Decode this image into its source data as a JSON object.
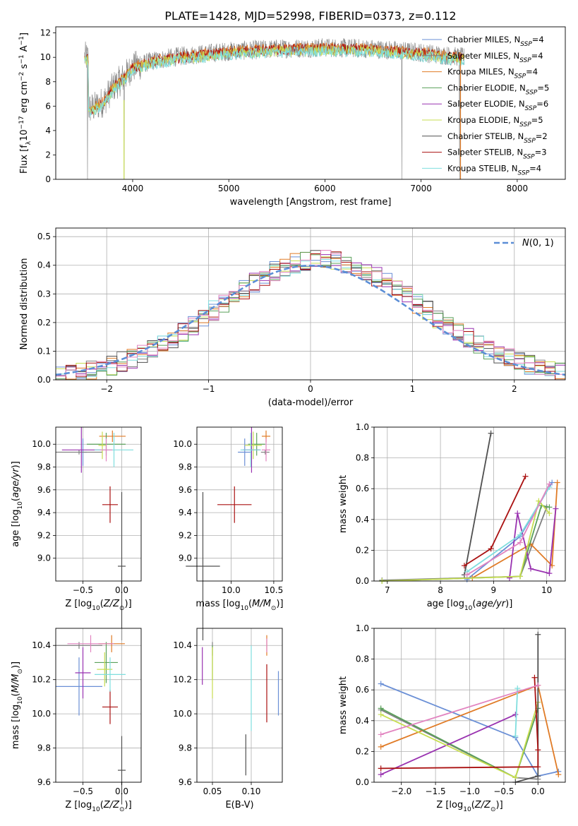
{
  "title": "PLATE=1428, MJD=52998, FIBERID=0373, z=0.112",
  "colors": {
    "Chabrier MILES": "#6a8fd6",
    "Salpeter MILES": "#808080",
    "Kroupa MILES": "#e07b26",
    "Chabrier ELODIE": "#5aa05a",
    "Salpeter ELODIE": "#9932b0",
    "Kroupa ELODIE": "#c7dd50",
    "Chabrier STELIB": "#505050",
    "Salpeter STELIB": "#aa1111",
    "Kroupa STELIB": "#7fdede",
    "pink": "#e284c0",
    "normal": "#5b8ed6"
  },
  "chart_data": [
    {
      "id": "spectrum",
      "type": "line",
      "xlabel": "wavelength [Angstrom, rest frame]",
      "ylabel": "Flux [f_λ10^-17 erg cm^-2 s^-1 A^-1]",
      "xlim": [
        3200,
        8500
      ],
      "ylim": [
        0,
        12.5
      ],
      "xticks": [
        4000,
        5000,
        6000,
        7000,
        8000
      ],
      "yticks": [
        0,
        2,
        4,
        6,
        8,
        10,
        12
      ],
      "grid": false,
      "legend_position": "right",
      "legend": [
        "Chabrier MILES, N_SSP=4",
        "Salpeter MILES, N_SSP=4",
        "Kroupa MILES, N_SSP=4",
        "Chabrier ELODIE, N_SSP=5",
        "Salpeter ELODIE, N_SSP=6",
        "Kroupa ELODIE, N_SSP=5",
        "Chabrier STELIB, N_SSP=2",
        "Salpeter STELIB, N_SSP=3",
        "Kroupa STELIB, N_SSP=4"
      ],
      "continuum": {
        "x": [
          3540,
          3600,
          3700,
          3800,
          3900,
          4000,
          4200,
          4500,
          5000,
          5500,
          6000,
          6500,
          7000,
          7200,
          7450
        ],
        "y": [
          5.8,
          5.9,
          6.4,
          7.6,
          8.3,
          9.2,
          9.7,
          10.1,
          10.5,
          10.7,
          10.8,
          10.7,
          10.4,
          10.2,
          10.0
        ]
      },
      "data_x_range": [
        3500,
        7450
      ],
      "spikes_to_zero": [
        3530,
        3910,
        6800,
        7400
      ]
    },
    {
      "id": "residuals",
      "type": "histogram",
      "xlabel": "(data-model)/error",
      "ylabel": "Normed distribution",
      "xlim": [
        -2.5,
        2.5
      ],
      "ylim": [
        0,
        0.53
      ],
      "xticks": [
        -2,
        -1,
        0,
        1,
        2
      ],
      "yticks": [
        0.0,
        0.1,
        0.2,
        0.3,
        0.4,
        0.5
      ],
      "grid": true,
      "legend": [
        "N(0,1)"
      ],
      "legend_position": "top-right",
      "bins": 50,
      "reference": "gaussian mean 0, sigma 1"
    },
    {
      "id": "age_vs_Z",
      "type": "scatter",
      "xlabel": "Z [log10(Z/Z⊙)]",
      "ylabel": "age  [log10(age/yr)]",
      "xlim": [
        -0.85,
        0.25
      ],
      "ylim": [
        8.8,
        10.15
      ],
      "xticks": [
        -0.5,
        0.0
      ],
      "yticks": [
        9.0,
        9.2,
        9.4,
        9.6,
        9.8,
        10.0
      ],
      "grid": true,
      "points": [
        {
          "series": "Chabrier MILES",
          "x": -0.5,
          "xerr": 0.05,
          "y": 9.93,
          "yerr": 0.12
        },
        {
          "series": "Salpeter MILES",
          "x": -0.55,
          "xerr": 0.3,
          "y": 9.93,
          "yerr": 0.02
        },
        {
          "series": "Kroupa MILES",
          "x": -0.12,
          "xerr": 0.17,
          "y": 10.07,
          "yerr": 0.05
        },
        {
          "series": "Chabrier ELODIE",
          "x": -0.2,
          "xerr": 0.25,
          "y": 10.0,
          "yerr": 0.1
        },
        {
          "series": "Salpeter ELODIE",
          "x": -0.52,
          "xerr": 0.25,
          "y": 9.95,
          "yerr": 0.2
        },
        {
          "series": "Kroupa ELODIE",
          "x": -0.25,
          "xerr": 0.05,
          "y": 9.99,
          "yerr": 0.12
        },
        {
          "series": "Chabrier STELIB",
          "x": 0.0,
          "xerr": 0.05,
          "y": 8.93,
          "yerr": 0.65
        },
        {
          "series": "Salpeter STELIB",
          "x": -0.15,
          "xerr": 0.1,
          "y": 9.47,
          "yerr": 0.16
        },
        {
          "series": "Kroupa STELIB",
          "x": -0.1,
          "xerr": 0.25,
          "y": 9.95,
          "yerr": 0.15
        },
        {
          "series": "pink",
          "x": -0.2,
          "xerr": 0.08,
          "y": 9.95,
          "yerr": 0.1
        }
      ]
    },
    {
      "id": "age_vs_mass",
      "type": "scatter",
      "xlabel": "mass [log10(M/M⊙)]",
      "ylabel": "",
      "xlim": [
        9.6,
        10.6
      ],
      "ylim": [
        8.8,
        10.15
      ],
      "xticks": [
        10.0,
        10.5
      ],
      "yticks": [
        9.0,
        9.2,
        9.4,
        9.6,
        9.8,
        10.0
      ],
      "grid": true,
      "points": [
        {
          "series": "Chabrier MILES",
          "x": 10.16,
          "xerr": 0.08,
          "y": 9.93,
          "yerr": 0.12
        },
        {
          "series": "Salpeter MILES",
          "x": 10.4,
          "xerr": 0.05,
          "y": 9.93,
          "yerr": 0.02
        },
        {
          "series": "Kroupa MILES",
          "x": 10.41,
          "xerr": 0.05,
          "y": 10.07,
          "yerr": 0.05
        },
        {
          "series": "Chabrier ELODIE",
          "x": 10.3,
          "xerr": 0.1,
          "y": 10.0,
          "yerr": 0.1
        },
        {
          "series": "Salpeter ELODIE",
          "x": 10.24,
          "xerr": 0.1,
          "y": 9.95,
          "yerr": 0.2
        },
        {
          "series": "Kroupa ELODIE",
          "x": 10.26,
          "xerr": 0.1,
          "y": 9.99,
          "yerr": 0.12
        },
        {
          "series": "Chabrier STELIB",
          "x": 9.67,
          "xerr": 0.2,
          "y": 8.93,
          "yerr": 0.65
        },
        {
          "series": "Salpeter STELIB",
          "x": 10.04,
          "xerr": 0.2,
          "y": 9.47,
          "yerr": 0.16
        },
        {
          "series": "Kroupa STELIB",
          "x": 10.23,
          "xerr": 0.12,
          "y": 9.95,
          "yerr": 0.15
        },
        {
          "series": "pink",
          "x": 10.41,
          "xerr": 0.05,
          "y": 9.95,
          "yerr": 0.1
        }
      ]
    },
    {
      "id": "weight_vs_age",
      "type": "line",
      "xlabel": "age  [log10(age/yr)]",
      "ylabel": "mass weight",
      "xlim": [
        6.75,
        10.35
      ],
      "ylim": [
        0.0,
        1.0
      ],
      "xticks": [
        7,
        8,
        9,
        10
      ],
      "yticks": [
        0.0,
        0.2,
        0.4,
        0.6,
        0.8,
        1.0
      ],
      "grid": true,
      "series": [
        {
          "name": "Chabrier MILES",
          "x": [
            8.5,
            9.5,
            10.1
          ],
          "y": [
            0.01,
            0.29,
            0.64
          ]
        },
        {
          "name": "Salpeter MILES",
          "x": [
            6.9,
            9.5,
            10.0
          ],
          "y": [
            0.005,
            0.03,
            0.48
          ]
        },
        {
          "name": "Kroupa MILES",
          "x": [
            8.6,
            9.7,
            10.1,
            10.2
          ],
          "y": [
            0.02,
            0.24,
            0.1,
            0.64
          ]
        },
        {
          "name": "Chabrier ELODIE",
          "x": [
            6.9,
            9.5,
            9.9,
            10.05
          ],
          "y": [
            0.0,
            0.03,
            0.49,
            0.48
          ]
        },
        {
          "name": "Salpeter ELODIE",
          "x": [
            9.3,
            9.45,
            9.7,
            10.05,
            10.17
          ],
          "y": [
            0.02,
            0.44,
            0.08,
            0.05,
            0.47
          ]
        },
        {
          "name": "Kroupa ELODIE",
          "x": [
            6.9,
            9.5,
            9.85,
            10.05
          ],
          "y": [
            0.0,
            0.03,
            0.52,
            0.44
          ]
        },
        {
          "name": "Chabrier STELIB",
          "x": [
            8.45,
            8.95
          ],
          "y": [
            0.04,
            0.96
          ]
        },
        {
          "name": "Salpeter STELIB",
          "x": [
            8.45,
            8.95,
            9.6
          ],
          "y": [
            0.1,
            0.21,
            0.68
          ]
        },
        {
          "name": "Kroupa STELIB",
          "x": [
            8.5,
            9.5,
            10.05
          ],
          "y": [
            0.06,
            0.3,
            0.61
          ]
        },
        {
          "name": "pink",
          "x": [
            8.5,
            9.5,
            10.05
          ],
          "y": [
            0.04,
            0.25,
            0.63
          ]
        }
      ]
    },
    {
      "id": "mass_vs_Z",
      "type": "scatter",
      "xlabel": "Z [log10(Z/Z⊙)]",
      "ylabel": "mass [log10(M/M⊙)]",
      "xlim": [
        -0.85,
        0.25
      ],
      "ylim": [
        9.6,
        10.5
      ],
      "xticks": [
        -0.5,
        0.0
      ],
      "yticks": [
        9.6,
        9.8,
        10.0,
        10.2,
        10.4
      ],
      "grid": true,
      "points": [
        {
          "series": "Chabrier MILES",
          "x": -0.55,
          "xerr": 0.3,
          "y": 10.16,
          "yerr": 0.17
        },
        {
          "series": "Salpeter MILES",
          "x": -0.55,
          "xerr": 0.3,
          "y": 10.4,
          "yerr": 0.02
        },
        {
          "series": "Kroupa MILES",
          "x": -0.13,
          "xerr": 0.17,
          "y": 10.41,
          "yerr": 0.05
        },
        {
          "series": "Chabrier ELODIE",
          "x": -0.2,
          "xerr": 0.15,
          "y": 10.3,
          "yerr": 0.12
        },
        {
          "series": "Salpeter ELODIE",
          "x": -0.5,
          "xerr": 0.1,
          "y": 10.24,
          "yerr": 0.15
        },
        {
          "series": "Kroupa ELODIE",
          "x": -0.22,
          "xerr": 0.1,
          "y": 10.26,
          "yerr": 0.1
        },
        {
          "series": "Chabrier STELIB",
          "x": 0.0,
          "xerr": 0.05,
          "y": 9.67,
          "yerr": 0.2
        },
        {
          "series": "Salpeter STELIB",
          "x": -0.15,
          "xerr": 0.1,
          "y": 10.04,
          "yerr": 0.1
        },
        {
          "series": "Kroupa STELIB",
          "x": -0.15,
          "xerr": 0.2,
          "y": 10.23,
          "yerr": 0.1
        },
        {
          "series": "pink",
          "x": -0.4,
          "xerr": 0.3,
          "y": 10.41,
          "yerr": 0.05
        }
      ]
    },
    {
      "id": "mass_vs_ebv",
      "type": "scatter",
      "xlabel": "E(B-V)",
      "ylabel": "",
      "xlim": [
        0.03,
        0.14
      ],
      "ylim": [
        9.6,
        10.5
      ],
      "xticks": [
        0.05,
        0.1
      ],
      "yticks": [
        9.6,
        9.8,
        10.0,
        10.2,
        10.4
      ],
      "grid": true,
      "points": [
        {
          "series": "Chabrier MILES",
          "x": 0.135,
          "y": 10.12,
          "yerr": 0.13
        },
        {
          "series": "Salpeter MILES",
          "x": 0.05,
          "y": 10.38,
          "yerr": 0.04
        },
        {
          "series": "Kroupa MILES",
          "x": 0.12,
          "y": 10.4,
          "yerr": 0.06
        },
        {
          "series": "Chabrier ELODIE",
          "x": 0.05,
          "y": 10.3,
          "yerr": 0.1
        },
        {
          "series": "Salpeter ELODIE",
          "x": 0.037,
          "y": 10.28,
          "yerr": 0.11
        },
        {
          "series": "Kroupa ELODIE",
          "x": 0.05,
          "y": 10.24,
          "yerr": 0.15
        },
        {
          "series": "Chabrier STELIB",
          "x": 0.093,
          "y": 9.76,
          "yerr": 0.12
        },
        {
          "series": "Salpeter STELIB",
          "x": 0.12,
          "y": 10.12,
          "yerr": 0.17
        },
        {
          "series": "Kroupa STELIB",
          "x": 0.1,
          "y": 10.15,
          "yerr": 0.25
        },
        {
          "series": "pink",
          "x": 0.12,
          "y": 10.4,
          "yerr": 0.04
        }
      ]
    },
    {
      "id": "weight_vs_Z",
      "type": "line",
      "xlabel": "Z [log10(Z/Z⊙)]",
      "ylabel": "mass weight",
      "xlim": [
        -2.4,
        0.4
      ],
      "ylim": [
        0.0,
        1.0
      ],
      "xticks": [
        -2.0,
        -1.5,
        -1.0,
        -0.5,
        0.0
      ],
      "yticks": [
        0.0,
        0.2,
        0.4,
        0.6,
        0.8,
        1.0
      ],
      "grid": true,
      "series": [
        {
          "name": "Chabrier MILES",
          "x": [
            -2.3,
            -0.33,
            0.0,
            0.3
          ],
          "y": [
            0.64,
            0.29,
            0.04,
            0.07
          ]
        },
        {
          "name": "Salpeter MILES",
          "x": [
            -2.3,
            -0.33,
            0.0
          ],
          "y": [
            0.47,
            0.03,
            0.02
          ]
        },
        {
          "name": "Kroupa MILES",
          "x": [
            -2.3,
            0.0,
            0.3
          ],
          "y": [
            0.23,
            0.63,
            0.05
          ]
        },
        {
          "name": "Chabrier ELODIE",
          "x": [
            -2.3,
            -0.33,
            0.0
          ],
          "y": [
            0.48,
            0.03,
            0.48
          ]
        },
        {
          "name": "Salpeter ELODIE",
          "x": [
            -2.3,
            -0.33
          ],
          "y": [
            0.05,
            0.44
          ]
        },
        {
          "name": "Kroupa ELODIE",
          "x": [
            -2.3,
            -0.33,
            0.0
          ],
          "y": [
            0.44,
            0.03,
            0.52
          ]
        },
        {
          "name": "Chabrier STELIB",
          "x": [
            -0.33,
            0.0,
            0.0
          ],
          "y": [
            0.0,
            0.04,
            0.96
          ]
        },
        {
          "name": "Salpeter STELIB",
          "x": [
            -2.3,
            0.0,
            0.0,
            -0.05
          ],
          "y": [
            0.09,
            0.1,
            0.21,
            0.68
          ]
        },
        {
          "name": "Kroupa STELIB",
          "x": [
            -0.33,
            -0.3
          ],
          "y": [
            0.3,
            0.61
          ]
        },
        {
          "name": "pink",
          "x": [
            -2.3,
            0.0
          ],
          "y": [
            0.31,
            0.63
          ]
        }
      ]
    }
  ]
}
